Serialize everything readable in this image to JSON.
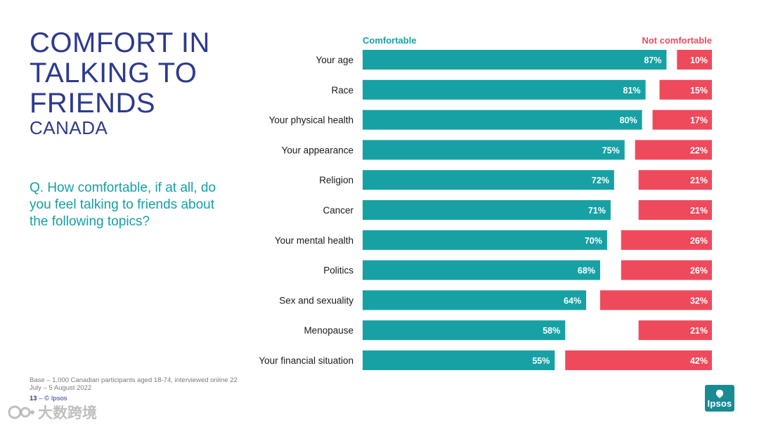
{
  "slide": {
    "title": "COMFORT IN\nTALKING TO\nFRIENDS",
    "subtitle": "CANADA",
    "question": "Q. How comfortable, if at all, do you feel talking to friends about the following topics?",
    "footnote": "Base – 1,000 Canadian participants aged 18-74, interviewed online 22 July – 5 August 2022",
    "page_number": "13",
    "copyright": "© Ipsos",
    "logo_text": "Ipsos",
    "watermark_text": "大数跨境"
  },
  "colors": {
    "comfortable": "#17a1a4",
    "not_comfortable": "#ee4a5c",
    "title": "#2d3a8c",
    "question": "#14a0a5"
  },
  "chart_data": {
    "type": "bar",
    "orientation": "horizontal",
    "categories": [
      "Your age",
      "Race",
      "Your physical health",
      "Your appearance",
      "Religion",
      "Cancer",
      "Your mental health",
      "Politics",
      "Sex and sexuality",
      "Menopause",
      "Your financial situation"
    ],
    "series": [
      {
        "name": "Comfortable",
        "values": [
          87,
          81,
          80,
          75,
          72,
          71,
          70,
          68,
          64,
          58,
          55
        ],
        "labels": [
          "87%",
          "81%",
          "80%",
          "75%",
          "72%",
          "71%",
          "70%",
          "68%",
          "64%",
          "58%",
          "55%"
        ],
        "anchor": "left"
      },
      {
        "name": "Not comfortable",
        "values": [
          10,
          15,
          17,
          22,
          21,
          21,
          26,
          26,
          32,
          21,
          42
        ],
        "labels": [
          "10%",
          "15%",
          "17%",
          "22%",
          "21%",
          "21%",
          "26%",
          "26%",
          "32%",
          "21%",
          "42%"
        ],
        "anchor": "right"
      }
    ],
    "xlim": [
      0,
      100
    ],
    "legend_position": "top"
  }
}
